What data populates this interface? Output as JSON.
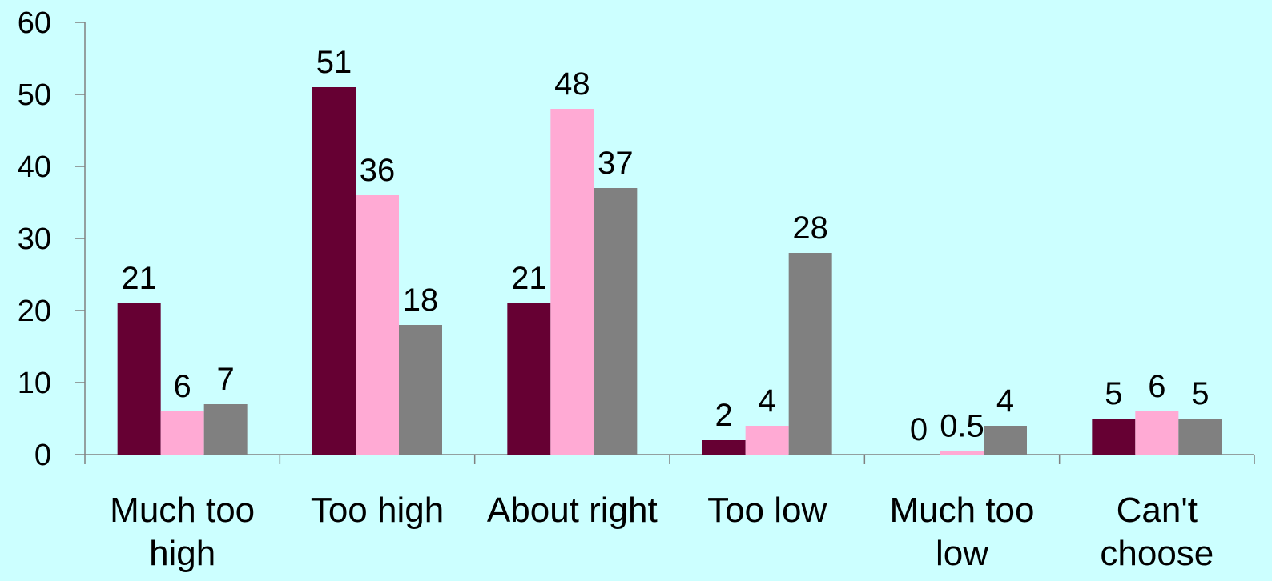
{
  "chart_data": {
    "type": "bar",
    "title": "",
    "xlabel": "",
    "ylabel": "",
    "ylim": [
      0,
      60
    ],
    "yticks": [
      0,
      10,
      20,
      30,
      40,
      50,
      60
    ],
    "grid": false,
    "legend": "none",
    "categories": [
      [
        "Much too",
        "high"
      ],
      [
        "Too high"
      ],
      [
        "About right"
      ],
      [
        "Too low"
      ],
      [
        "Much too",
        "low"
      ],
      [
        "Can't",
        "choose"
      ]
    ],
    "series": [
      {
        "color": "#660033",
        "values": [
          21,
          51,
          21,
          2,
          0,
          5
        ],
        "labels": [
          "21",
          "51",
          "21",
          "2",
          "0",
          "5"
        ]
      },
      {
        "color": "#ffaad4",
        "values": [
          6,
          36,
          48,
          4,
          0.5,
          6
        ],
        "labels": [
          "6",
          "36",
          "48",
          "4",
          "0.5",
          "6"
        ]
      },
      {
        "color": "#808080",
        "values": [
          7,
          18,
          37,
          28,
          4,
          5
        ],
        "labels": [
          "7",
          "18",
          "37",
          "28",
          "4",
          "5"
        ]
      }
    ],
    "colors": {
      "background": "#ccffff",
      "axis": "#808080"
    }
  }
}
